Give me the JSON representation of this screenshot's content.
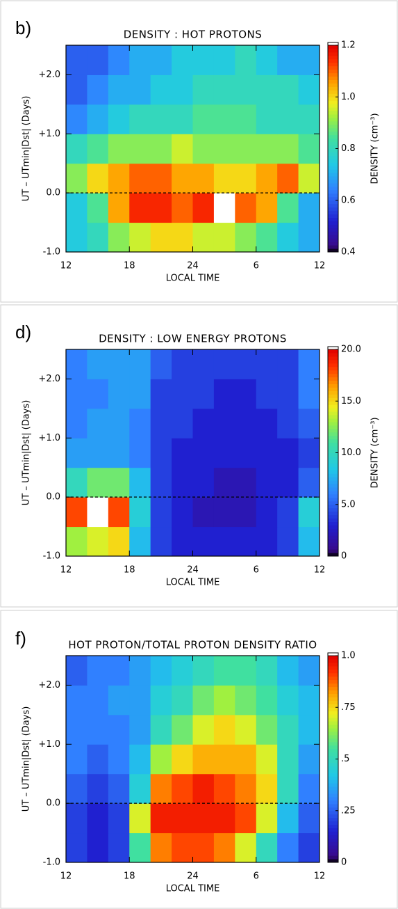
{
  "chart_data": [
    {
      "type": "heatmap",
      "panel_label": "b)",
      "title": "DENSITY : HOT PROTONS",
      "xlabel": "LOCAL TIME",
      "ylabel": "UT – UTmin|Dst| (Days)",
      "colorbar_label": "DENSITY (cm⁻³)",
      "xlim": [
        12,
        36
      ],
      "xticks": [
        12,
        18,
        24,
        {
          "value": 30,
          "label": "6"
        },
        {
          "value": 36,
          "label": "12"
        }
      ],
      "ylim": [
        -1,
        2.5
      ],
      "yticks": [
        {
          "value": -1,
          "label": "-1.0"
        },
        {
          "value": 0,
          "label": "0.0"
        },
        {
          "value": 1,
          "label": "+1.0"
        },
        {
          "value": 2,
          "label": "+2.0"
        }
      ],
      "hline": 0,
      "xbins": [
        12,
        14,
        16,
        18,
        20,
        22,
        24,
        26,
        28,
        30,
        32,
        34,
        36
      ],
      "ybins": [
        -1,
        -0.5,
        0,
        0.5,
        1,
        1.5,
        2,
        2.5
      ],
      "zlim": [
        0.4,
        1.2
      ],
      "zticks": [
        0.4,
        0.6,
        0.8,
        {
          "value": 1,
          "label": "1.0"
        },
        1.2
      ],
      "z": [
        [
          0.75,
          0.8,
          0.9,
          0.95,
          1.0,
          1.0,
          0.95,
          0.95,
          0.9,
          0.85,
          0.75,
          0.7
        ],
        [
          0.75,
          0.85,
          1.05,
          1.15,
          1.15,
          1.1,
          1.15,
          1.25,
          1.1,
          1.05,
          0.85,
          0.7
        ],
        [
          0.9,
          1.0,
          1.05,
          1.1,
          1.1,
          1.05,
          1.05,
          1.0,
          1.0,
          1.05,
          1.1,
          0.95
        ],
        [
          0.8,
          0.85,
          0.9,
          0.9,
          0.9,
          0.95,
          0.9,
          0.9,
          0.9,
          0.9,
          0.9,
          0.85
        ],
        [
          0.65,
          0.7,
          0.75,
          0.8,
          0.8,
          0.8,
          0.85,
          0.85,
          0.85,
          0.8,
          0.8,
          0.8
        ],
        [
          0.6,
          0.65,
          0.7,
          0.7,
          0.75,
          0.75,
          0.8,
          0.8,
          0.8,
          0.8,
          0.8,
          0.75
        ],
        [
          0.6,
          0.6,
          0.65,
          0.7,
          0.7,
          0.75,
          0.75,
          0.75,
          0.8,
          0.75,
          0.7,
          0.7
        ]
      ]
    },
    {
      "type": "heatmap",
      "panel_label": "d)",
      "title": "DENSITY : LOW ENERGY PROTONS",
      "xlabel": "LOCAL TIME",
      "ylabel": "UT – UTmin|Dst| (Days)",
      "colorbar_label": "DENSITY (cm⁻³)",
      "xlim": [
        12,
        36
      ],
      "xticks": [
        12,
        18,
        24,
        {
          "value": 30,
          "label": "6"
        },
        {
          "value": 36,
          "label": "12"
        }
      ],
      "ylim": [
        -1,
        2.5
      ],
      "yticks": [
        {
          "value": -1,
          "label": "-1.0"
        },
        {
          "value": 0,
          "label": "0.0"
        },
        {
          "value": 1,
          "label": "+1.0"
        },
        {
          "value": 2,
          "label": "+2.0"
        }
      ],
      "hline": 0,
      "xbins": [
        12,
        14,
        16,
        18,
        20,
        22,
        24,
        26,
        28,
        30,
        32,
        34,
        36
      ],
      "ybins": [
        -1,
        -0.5,
        0,
        0.5,
        1,
        1.5,
        2,
        2.5
      ],
      "zlim": [
        0,
        20
      ],
      "zticks": [
        0,
        {
          "value": 5,
          "label": "5.0"
        },
        {
          "value": 10,
          "label": "10.0"
        },
        {
          "value": 15,
          "label": "15.0"
        },
        {
          "value": 20,
          "label": "20.0"
        }
      ],
      "z": [
        [
          13,
          14,
          15,
          8,
          4,
          3,
          3,
          3,
          3,
          3,
          4,
          8
        ],
        [
          18,
          21,
          18,
          9,
          4,
          3,
          2,
          2,
          2,
          3,
          4,
          9
        ],
        [
          10,
          12,
          12,
          8,
          4,
          3,
          3,
          2,
          2,
          3,
          3,
          5
        ],
        [
          7,
          7,
          7,
          6,
          4,
          3,
          3,
          3,
          3,
          3,
          3,
          4
        ],
        [
          6,
          7,
          7,
          6,
          4,
          4,
          3,
          3,
          3,
          3,
          4,
          5
        ],
        [
          6,
          6,
          7,
          7,
          4,
          4,
          4,
          3,
          3,
          4,
          4,
          6
        ],
        [
          6,
          7,
          7,
          7,
          5,
          4,
          4,
          4,
          4,
          4,
          4,
          6
        ]
      ]
    },
    {
      "type": "heatmap",
      "panel_label": "f)",
      "title": "HOT PROTON/TOTAL PROTON DENSITY RATIO",
      "xlabel": "LOCAL TIME",
      "ylabel": "UT – UTmin|Dst| (Days)",
      "xlim": [
        12,
        36
      ],
      "xticks": [
        12,
        18,
        24,
        {
          "value": 30,
          "label": "6"
        },
        {
          "value": 36,
          "label": "12"
        }
      ],
      "ylim": [
        -1,
        2.5
      ],
      "yticks": [
        {
          "value": -1,
          "label": "-1.0"
        },
        {
          "value": 0,
          "label": "0.0"
        },
        {
          "value": 1,
          "label": "+1.0"
        },
        {
          "value": 2,
          "label": "+2.0"
        }
      ],
      "hline": 0,
      "xbins": [
        12,
        14,
        16,
        18,
        20,
        22,
        24,
        26,
        28,
        30,
        32,
        34,
        36
      ],
      "ybins": [
        -1,
        -0.5,
        0,
        0.5,
        1,
        1.5,
        2,
        2.5
      ],
      "zlim": [
        0,
        1
      ],
      "zticks": [
        0,
        {
          "value": 0.25,
          "label": ".25"
        },
        {
          "value": 0.5,
          "label": ".5"
        },
        {
          "value": 0.75,
          "label": ".75"
        },
        {
          "value": 1,
          "label": "1.0"
        }
      ],
      "z": [
        [
          0.2,
          0.15,
          0.2,
          0.55,
          0.85,
          0.9,
          0.9,
          0.85,
          0.7,
          0.5,
          0.3,
          0.2
        ],
        [
          0.2,
          0.15,
          0.2,
          0.7,
          0.95,
          0.95,
          0.95,
          0.95,
          0.9,
          0.7,
          0.4,
          0.25
        ],
        [
          0.25,
          0.2,
          0.25,
          0.45,
          0.85,
          0.9,
          0.95,
          0.9,
          0.85,
          0.75,
          0.5,
          0.3
        ],
        [
          0.3,
          0.25,
          0.3,
          0.4,
          0.65,
          0.75,
          0.8,
          0.8,
          0.8,
          0.7,
          0.5,
          0.35
        ],
        [
          0.3,
          0.3,
          0.3,
          0.35,
          0.5,
          0.6,
          0.7,
          0.75,
          0.7,
          0.6,
          0.5,
          0.4
        ],
        [
          0.3,
          0.3,
          0.35,
          0.35,
          0.45,
          0.5,
          0.6,
          0.65,
          0.6,
          0.55,
          0.45,
          0.4
        ],
        [
          0.25,
          0.3,
          0.3,
          0.35,
          0.4,
          0.45,
          0.5,
          0.55,
          0.55,
          0.5,
          0.4,
          0.35
        ]
      ]
    }
  ]
}
